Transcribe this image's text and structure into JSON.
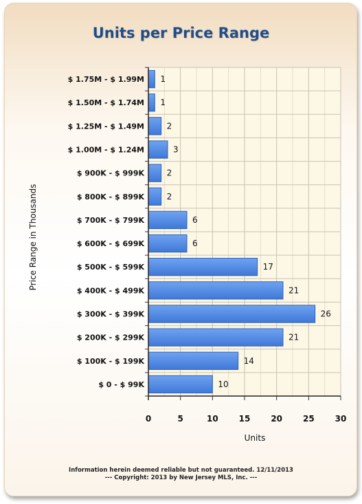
{
  "chart_data": {
    "type": "bar",
    "orientation": "horizontal",
    "title": "Units per Price Range",
    "xlabel": "Units",
    "ylabel": "Price Range in Thousands",
    "xlim": [
      0,
      30
    ],
    "xticks": [
      0,
      5,
      10,
      15,
      20,
      25,
      30
    ],
    "grid": true,
    "categories": [
      "$ 1.75M - $ 1.99M",
      "$ 1.50M - $ 1.74M",
      "$ 1.25M - $ 1.49M",
      "$ 1.00M - $ 1.24M",
      "$ 900K - $ 999K",
      "$ 800K - $ 899K",
      "$ 700K - $ 799K",
      "$ 600K - $ 699K",
      "$ 500K - $ 599K",
      "$ 400K - $ 499K",
      "$ 300K - $ 399K",
      "$ 200K - $ 299K",
      "$ 100K - $ 199K",
      "$ 0 - $ 99K"
    ],
    "values": [
      1,
      1,
      2,
      3,
      2,
      2,
      6,
      6,
      17,
      21,
      26,
      21,
      14,
      10
    ],
    "colors": {
      "bar": "#4f88e3",
      "bar_edge": "#2f62b8",
      "plot_bg": "#fdf7e6",
      "grid": "#c8c2b4"
    }
  },
  "footer": {
    "line1": "Information herein deemed reliable but not guaranteed. 12/11/2013",
    "line2": "--- Copyright: 2013 by New Jersey MLS, Inc. ---"
  }
}
